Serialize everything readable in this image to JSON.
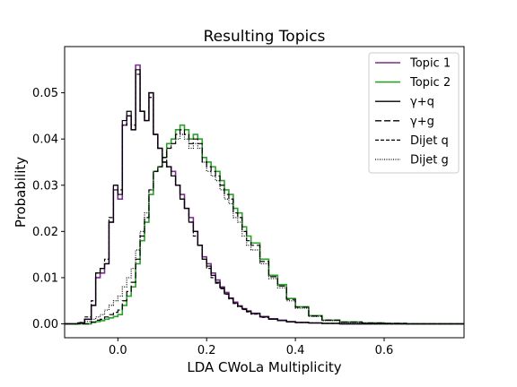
{
  "chart_data": {
    "type": "line",
    "title": "Resulting Topics",
    "xlabel": "LDA CWoLa Multiplicity",
    "ylabel": "Probability",
    "xlim": [
      -0.12,
      0.78
    ],
    "ylim": [
      -0.003,
      0.06
    ],
    "xticks": [
      0.0,
      0.2,
      0.4,
      0.6
    ],
    "xtick_labels": [
      "0.0",
      "0.2",
      "0.4",
      "0.6"
    ],
    "yticks": [
      0.0,
      0.01,
      0.02,
      0.03,
      0.04,
      0.05
    ],
    "ytick_labels": [
      "0.00",
      "0.01",
      "0.02",
      "0.03",
      "0.04",
      "0.05"
    ],
    "grid": false,
    "legend_position": "top-right",
    "x": [
      -0.12,
      -0.09,
      -0.075,
      -0.06,
      -0.05,
      -0.04,
      -0.03,
      -0.02,
      -0.01,
      0.0,
      0.01,
      0.02,
      0.03,
      0.04,
      0.05,
      0.06,
      0.07,
      0.08,
      0.09,
      0.1,
      0.11,
      0.12,
      0.13,
      0.14,
      0.15,
      0.16,
      0.17,
      0.18,
      0.19,
      0.2,
      0.21,
      0.22,
      0.23,
      0.24,
      0.25,
      0.26,
      0.27,
      0.28,
      0.29,
      0.3,
      0.32,
      0.34,
      0.36,
      0.38,
      0.4,
      0.43,
      0.46,
      0.5,
      0.55,
      0.6,
      0.65,
      0.7,
      0.78
    ],
    "series": [
      {
        "name": "Topic 1",
        "color": "#7b2d8e",
        "style": "solid",
        "values": [
          0.0,
          0.0002,
          0.001,
          0.004,
          0.01,
          0.011,
          0.013,
          0.022,
          0.029,
          0.027,
          0.043,
          0.045,
          0.042,
          0.056,
          0.046,
          0.044,
          0.05,
          0.041,
          0.038,
          0.035,
          0.034,
          0.033,
          0.03,
          0.028,
          0.025,
          0.023,
          0.02,
          0.017,
          0.0145,
          0.013,
          0.011,
          0.0095,
          0.008,
          0.0068,
          0.0056,
          0.0047,
          0.0039,
          0.0033,
          0.0028,
          0.0023,
          0.0016,
          0.0011,
          0.0008,
          0.0005,
          0.0003,
          0.0002,
          0.0001,
          0.0,
          0.0,
          0.0,
          0.0,
          0.0,
          0.0
        ]
      },
      {
        "name": "Topic 2",
        "color": "#2ca02c",
        "style": "solid",
        "values": [
          0.0,
          0.0,
          0.0,
          0.0003,
          0.0005,
          0.0007,
          0.001,
          0.0013,
          0.0016,
          0.002,
          0.004,
          0.006,
          0.008,
          0.013,
          0.018,
          0.022,
          0.028,
          0.033,
          0.034,
          0.036,
          0.039,
          0.04,
          0.042,
          0.043,
          0.042,
          0.04,
          0.041,
          0.04,
          0.036,
          0.035,
          0.034,
          0.033,
          0.031,
          0.029,
          0.028,
          0.025,
          0.024,
          0.021,
          0.019,
          0.0175,
          0.014,
          0.0105,
          0.0085,
          0.0055,
          0.0037,
          0.0018,
          0.0008,
          0.0004,
          0.0002,
          0.0001,
          0.0,
          0.0,
          0.0
        ]
      },
      {
        "name": "γ+q",
        "color": "#000000",
        "style": "solid",
        "values": [
          0.0,
          0.0002,
          0.001,
          0.004,
          0.011,
          0.012,
          0.013,
          0.022,
          0.03,
          0.028,
          0.044,
          0.046,
          0.042,
          0.055,
          0.046,
          0.044,
          0.05,
          0.041,
          0.038,
          0.035,
          0.034,
          0.032,
          0.03,
          0.027,
          0.025,
          0.022,
          0.02,
          0.017,
          0.014,
          0.0125,
          0.0105,
          0.009,
          0.0078,
          0.0065,
          0.0055,
          0.0045,
          0.0038,
          0.0032,
          0.0027,
          0.0022,
          0.0015,
          0.001,
          0.0007,
          0.0004,
          0.0003,
          0.0002,
          0.0001,
          0.0,
          0.0,
          0.0,
          0.0,
          0.0,
          0.0
        ]
      },
      {
        "name": "γ+g",
        "color": "#000000",
        "style": "longdash",
        "values": [
          0.0,
          0.0,
          0.0,
          0.0004,
          0.0008,
          0.001,
          0.0015,
          0.002,
          0.0025,
          0.003,
          0.005,
          0.007,
          0.009,
          0.014,
          0.019,
          0.023,
          0.029,
          0.033,
          0.034,
          0.036,
          0.038,
          0.039,
          0.041,
          0.042,
          0.041,
          0.039,
          0.04,
          0.039,
          0.035,
          0.034,
          0.033,
          0.032,
          0.03,
          0.028,
          0.027,
          0.024,
          0.023,
          0.02,
          0.018,
          0.017,
          0.0135,
          0.0102,
          0.0082,
          0.0053,
          0.0036,
          0.0017,
          0.0008,
          0.0004,
          0.0002,
          0.0001,
          0.0,
          0.0,
          0.0
        ]
      },
      {
        "name": "Dijet q",
        "color": "#000000",
        "style": "dashed",
        "values": [
          0.0,
          0.0003,
          0.0015,
          0.005,
          0.011,
          0.012,
          0.014,
          0.023,
          0.03,
          0.029,
          0.043,
          0.045,
          0.043,
          0.054,
          0.046,
          0.044,
          0.049,
          0.041,
          0.038,
          0.036,
          0.034,
          0.032,
          0.03,
          0.027,
          0.025,
          0.022,
          0.019,
          0.017,
          0.014,
          0.012,
          0.01,
          0.0088,
          0.0076,
          0.0064,
          0.0054,
          0.0044,
          0.0037,
          0.0031,
          0.0026,
          0.0021,
          0.0014,
          0.001,
          0.0007,
          0.0004,
          0.0003,
          0.0002,
          0.0001,
          0.0,
          0.0,
          0.0,
          0.0,
          0.0,
          0.0
        ]
      },
      {
        "name": "Dijet g",
        "color": "#000000",
        "style": "dotted",
        "values": [
          0.0,
          0.0001,
          0.0005,
          0.001,
          0.0015,
          0.002,
          0.003,
          0.004,
          0.005,
          0.006,
          0.008,
          0.01,
          0.012,
          0.016,
          0.02,
          0.024,
          0.029,
          0.033,
          0.034,
          0.036,
          0.038,
          0.039,
          0.04,
          0.041,
          0.04,
          0.038,
          0.039,
          0.038,
          0.035,
          0.033,
          0.032,
          0.031,
          0.029,
          0.027,
          0.026,
          0.023,
          0.022,
          0.019,
          0.017,
          0.016,
          0.013,
          0.0098,
          0.0078,
          0.005,
          0.0034,
          0.0016,
          0.0007,
          0.0003,
          0.0002,
          0.0001,
          0.0,
          0.0,
          0.0
        ]
      }
    ]
  }
}
